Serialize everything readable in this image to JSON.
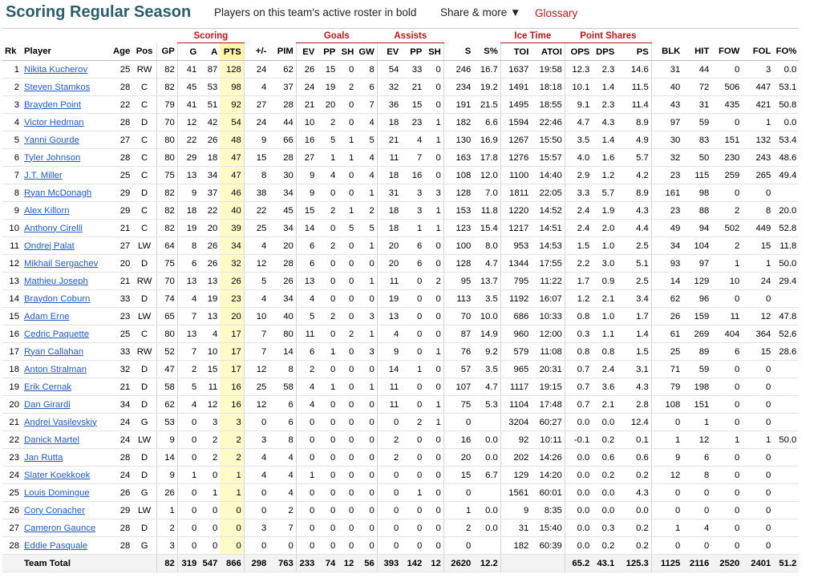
{
  "header": {
    "title": "Scoring Regular Season",
    "subtitle": "Players on this team's active roster in bold",
    "share": "Share & more ▼",
    "glossary": "Glossary"
  },
  "groups": {
    "scoring": "Scoring",
    "goals": "Goals",
    "assists": "Assists",
    "ice_time": "Ice Time",
    "point_shares": "Point Shares"
  },
  "columns": [
    "Rk",
    "Player",
    "Age",
    "Pos",
    "GP",
    "G",
    "A",
    "PTS",
    "+/-",
    "PIM",
    "EV",
    "PP",
    "SH",
    "GW",
    "EV",
    "PP",
    "SH",
    "S",
    "S%",
    "TOI",
    "ATOI",
    "OPS",
    "DPS",
    "PS",
    "BLK",
    "HIT",
    "FOW",
    "FOL",
    "FO%"
  ],
  "rows": [
    [
      "1",
      "Nikita Kucherov",
      "25",
      "RW",
      "82",
      "41",
      "87",
      "128",
      "24",
      "62",
      "26",
      "15",
      "0",
      "8",
      "54",
      "33",
      "0",
      "246",
      "16.7",
      "1637",
      "19:58",
      "12.3",
      "2.3",
      "14.6",
      "31",
      "44",
      "0",
      "3",
      "0.0"
    ],
    [
      "2",
      "Steven Stamkos",
      "28",
      "C",
      "82",
      "45",
      "53",
      "98",
      "4",
      "37",
      "24",
      "19",
      "2",
      "6",
      "32",
      "21",
      "0",
      "234",
      "19.2",
      "1491",
      "18:18",
      "10.1",
      "1.4",
      "11.5",
      "40",
      "72",
      "506",
      "447",
      "53.1"
    ],
    [
      "3",
      "Brayden Point",
      "22",
      "C",
      "79",
      "41",
      "51",
      "92",
      "27",
      "28",
      "21",
      "20",
      "0",
      "7",
      "36",
      "15",
      "0",
      "191",
      "21.5",
      "1495",
      "18:55",
      "9.1",
      "2.3",
      "11.4",
      "43",
      "31",
      "435",
      "421",
      "50.8"
    ],
    [
      "4",
      "Victor Hedman",
      "28",
      "D",
      "70",
      "12",
      "42",
      "54",
      "24",
      "44",
      "10",
      "2",
      "0",
      "4",
      "18",
      "23",
      "1",
      "182",
      "6.6",
      "1594",
      "22:46",
      "4.7",
      "4.3",
      "8.9",
      "97",
      "59",
      "0",
      "1",
      "0.0"
    ],
    [
      "5",
      "Yanni Gourde",
      "27",
      "C",
      "80",
      "22",
      "26",
      "48",
      "9",
      "66",
      "16",
      "5",
      "1",
      "5",
      "21",
      "4",
      "1",
      "130",
      "16.9",
      "1267",
      "15:50",
      "3.5",
      "1.4",
      "4.9",
      "30",
      "83",
      "151",
      "132",
      "53.4"
    ],
    [
      "6",
      "Tyler Johnson",
      "28",
      "C",
      "80",
      "29",
      "18",
      "47",
      "15",
      "28",
      "27",
      "1",
      "1",
      "4",
      "11",
      "7",
      "0",
      "163",
      "17.8",
      "1276",
      "15:57",
      "4.0",
      "1.6",
      "5.7",
      "32",
      "50",
      "230",
      "243",
      "48.6"
    ],
    [
      "7",
      "J.T. Miller",
      "25",
      "C",
      "75",
      "13",
      "34",
      "47",
      "8",
      "30",
      "9",
      "4",
      "0",
      "4",
      "18",
      "16",
      "0",
      "108",
      "12.0",
      "1100",
      "14:40",
      "2.9",
      "1.2",
      "4.2",
      "23",
      "115",
      "259",
      "265",
      "49.4"
    ],
    [
      "8",
      "Ryan McDonagh",
      "29",
      "D",
      "82",
      "9",
      "37",
      "46",
      "38",
      "34",
      "9",
      "0",
      "0",
      "1",
      "31",
      "3",
      "3",
      "128",
      "7.0",
      "1811",
      "22:05",
      "3.3",
      "5.7",
      "8.9",
      "161",
      "98",
      "0",
      "0",
      ""
    ],
    [
      "9",
      "Alex Killorn",
      "29",
      "C",
      "82",
      "18",
      "22",
      "40",
      "22",
      "45",
      "15",
      "2",
      "1",
      "2",
      "18",
      "3",
      "1",
      "153",
      "11.8",
      "1220",
      "14:52",
      "2.4",
      "1.9",
      "4.3",
      "23",
      "88",
      "2",
      "8",
      "20.0"
    ],
    [
      "10",
      "Anthony Cirelli",
      "21",
      "C",
      "82",
      "19",
      "20",
      "39",
      "25",
      "34",
      "14",
      "0",
      "5",
      "5",
      "18",
      "1",
      "1",
      "123",
      "15.4",
      "1217",
      "14:51",
      "2.4",
      "2.0",
      "4.4",
      "49",
      "94",
      "502",
      "449",
      "52.8"
    ],
    [
      "11",
      "Ondrej Palat",
      "27",
      "LW",
      "64",
      "8",
      "26",
      "34",
      "4",
      "20",
      "6",
      "2",
      "0",
      "1",
      "20",
      "6",
      "0",
      "100",
      "8.0",
      "953",
      "14:53",
      "1.5",
      "1.0",
      "2.5",
      "34",
      "104",
      "2",
      "15",
      "11.8"
    ],
    [
      "12",
      "Mikhail Sergachev",
      "20",
      "D",
      "75",
      "6",
      "26",
      "32",
      "12",
      "28",
      "6",
      "0",
      "0",
      "0",
      "20",
      "6",
      "0",
      "128",
      "4.7",
      "1344",
      "17:55",
      "2.2",
      "3.0",
      "5.1",
      "93",
      "97",
      "1",
      "1",
      "50.0"
    ],
    [
      "13",
      "Mathieu Joseph",
      "21",
      "RW",
      "70",
      "13",
      "13",
      "26",
      "5",
      "26",
      "13",
      "0",
      "0",
      "1",
      "11",
      "0",
      "2",
      "95",
      "13.7",
      "795",
      "11:22",
      "1.7",
      "0.9",
      "2.5",
      "14",
      "129",
      "10",
      "24",
      "29.4"
    ],
    [
      "14",
      "Braydon Coburn",
      "33",
      "D",
      "74",
      "4",
      "19",
      "23",
      "4",
      "34",
      "4",
      "0",
      "0",
      "0",
      "19",
      "0",
      "0",
      "113",
      "3.5",
      "1192",
      "16:07",
      "1.2",
      "2.1",
      "3.4",
      "62",
      "96",
      "0",
      "0",
      ""
    ],
    [
      "15",
      "Adam Erne",
      "23",
      "LW",
      "65",
      "7",
      "13",
      "20",
      "10",
      "40",
      "5",
      "2",
      "0",
      "3",
      "13",
      "0",
      "0",
      "70",
      "10.0",
      "686",
      "10:33",
      "0.8",
      "1.0",
      "1.7",
      "26",
      "159",
      "11",
      "12",
      "47.8"
    ],
    [
      "16",
      "Cedric Paquette",
      "25",
      "C",
      "80",
      "13",
      "4",
      "17",
      "7",
      "80",
      "11",
      "0",
      "2",
      "1",
      "4",
      "0",
      "0",
      "87",
      "14.9",
      "960",
      "12:00",
      "0.3",
      "1.1",
      "1.4",
      "61",
      "269",
      "404",
      "364",
      "52.6"
    ],
    [
      "17",
      "Ryan Callahan",
      "33",
      "RW",
      "52",
      "7",
      "10",
      "17",
      "7",
      "14",
      "6",
      "1",
      "0",
      "3",
      "9",
      "0",
      "1",
      "76",
      "9.2",
      "579",
      "11:08",
      "0.8",
      "0.8",
      "1.5",
      "25",
      "89",
      "6",
      "15",
      "28.6"
    ],
    [
      "18",
      "Anton Stralman",
      "32",
      "D",
      "47",
      "2",
      "15",
      "17",
      "12",
      "8",
      "2",
      "0",
      "0",
      "0",
      "14",
      "1",
      "0",
      "57",
      "3.5",
      "965",
      "20:31",
      "0.7",
      "2.4",
      "3.1",
      "71",
      "59",
      "0",
      "0",
      ""
    ],
    [
      "19",
      "Erik Cernak",
      "21",
      "D",
      "58",
      "5",
      "11",
      "16",
      "25",
      "58",
      "4",
      "1",
      "0",
      "1",
      "11",
      "0",
      "0",
      "107",
      "4.7",
      "1117",
      "19:15",
      "0.7",
      "3.6",
      "4.3",
      "79",
      "198",
      "0",
      "0",
      ""
    ],
    [
      "20",
      "Dan Girardi",
      "34",
      "D",
      "62",
      "4",
      "12",
      "16",
      "12",
      "6",
      "4",
      "0",
      "0",
      "0",
      "11",
      "0",
      "1",
      "75",
      "5.3",
      "1104",
      "17:48",
      "0.7",
      "2.1",
      "2.8",
      "108",
      "151",
      "0",
      "0",
      ""
    ],
    [
      "21",
      "Andrei Vasilevskiy",
      "24",
      "G",
      "53",
      "0",
      "3",
      "3",
      "0",
      "6",
      "0",
      "0",
      "0",
      "0",
      "0",
      "2",
      "1",
      "0",
      "",
      "3204",
      "60:27",
      "0.0",
      "0.0",
      "12.4",
      "0",
      "1",
      "0",
      "0",
      ""
    ],
    [
      "22",
      "Danick Martel",
      "24",
      "LW",
      "9",
      "0",
      "2",
      "2",
      "3",
      "8",
      "0",
      "0",
      "0",
      "0",
      "2",
      "0",
      "0",
      "16",
      "0.0",
      "92",
      "10:11",
      "-0.1",
      "0.2",
      "0.1",
      "1",
      "12",
      "1",
      "1",
      "50.0"
    ],
    [
      "23",
      "Jan Rutta",
      "28",
      "D",
      "14",
      "0",
      "2",
      "2",
      "4",
      "4",
      "0",
      "0",
      "0",
      "0",
      "2",
      "0",
      "0",
      "20",
      "0.0",
      "202",
      "14:26",
      "0.0",
      "0.6",
      "0.6",
      "9",
      "6",
      "0",
      "0",
      ""
    ],
    [
      "24",
      "Slater Koekkoek",
      "24",
      "D",
      "9",
      "1",
      "0",
      "1",
      "4",
      "4",
      "1",
      "0",
      "0",
      "0",
      "0",
      "0",
      "0",
      "15",
      "6.7",
      "129",
      "14:20",
      "0.0",
      "0.2",
      "0.2",
      "12",
      "8",
      "0",
      "0",
      ""
    ],
    [
      "25",
      "Louis Domingue",
      "26",
      "G",
      "26",
      "0",
      "1",
      "1",
      "0",
      "4",
      "0",
      "0",
      "0",
      "0",
      "0",
      "1",
      "0",
      "0",
      "",
      "1561",
      "60:01",
      "0.0",
      "0.0",
      "4.3",
      "0",
      "0",
      "0",
      "0",
      ""
    ],
    [
      "26",
      "Cory Conacher",
      "29",
      "LW",
      "1",
      "0",
      "0",
      "0",
      "0",
      "2",
      "0",
      "0",
      "0",
      "0",
      "0",
      "0",
      "0",
      "1",
      "0.0",
      "9",
      "8:35",
      "0.0",
      "0.0",
      "0.0",
      "0",
      "0",
      "0",
      "0",
      ""
    ],
    [
      "27",
      "Cameron Gaunce",
      "28",
      "D",
      "2",
      "0",
      "0",
      "0",
      "3",
      "7",
      "0",
      "0",
      "0",
      "0",
      "0",
      "0",
      "0",
      "2",
      "0.0",
      "31",
      "15:40",
      "0.0",
      "0.3",
      "0.2",
      "1",
      "4",
      "0",
      "0",
      ""
    ],
    [
      "28",
      "Eddie Pasquale",
      "28",
      "G",
      "3",
      "0",
      "0",
      "0",
      "0",
      "0",
      "0",
      "0",
      "0",
      "0",
      "0",
      "0",
      "0",
      "0",
      "",
      "182",
      "60:39",
      "0.0",
      "0.2",
      "0.2",
      "0",
      "0",
      "0",
      "0",
      ""
    ]
  ],
  "total": [
    "",
    "Team Total",
    "",
    "",
    "82",
    "319",
    "547",
    "866",
    "298",
    "763",
    "233",
    "74",
    "12",
    "56",
    "393",
    "142",
    "12",
    "2620",
    "12.2",
    "",
    "",
    "65.2",
    "43.1",
    "125.3",
    "1125",
    "2116",
    "2520",
    "2401",
    "51.2"
  ],
  "colors": {
    "title": "#2b5d6b",
    "group_header": "#b5191c",
    "link": "#245cbd",
    "pts_highlight": "#fffbc8"
  }
}
